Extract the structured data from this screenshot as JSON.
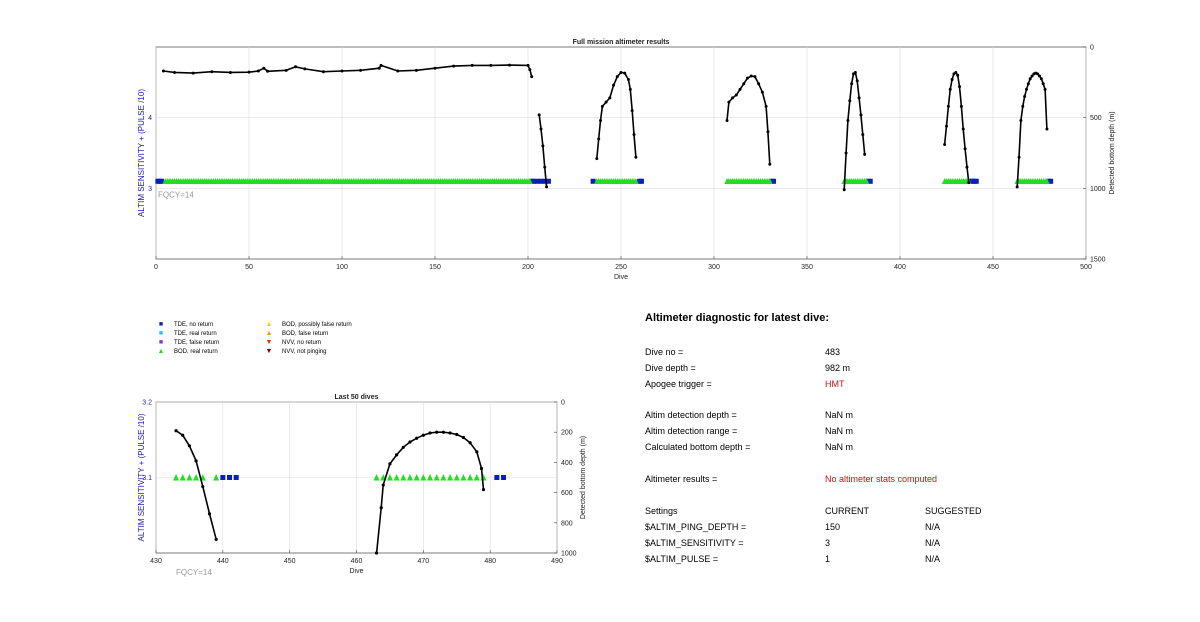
{
  "charts": [
    {
      "id": "full",
      "title": "Full mission altimeter results",
      "xlabel": "Dive",
      "ylabel_left": "ALTIM SENSITIVITY + (PULSE /10)",
      "ylabel_right": "Detected bottom depth (m)",
      "annotation": "FQCY=14",
      "xlim": [
        0,
        500
      ],
      "xticks": [
        0,
        50,
        100,
        150,
        200,
        250,
        300,
        350,
        400,
        450,
        500
      ],
      "ylim_left": [
        2,
        5
      ],
      "yticks_left": [
        3,
        4
      ],
      "ylim_right": [
        0,
        1500
      ],
      "yticks_right": [
        0,
        500,
        1000,
        1500
      ]
    },
    {
      "id": "last50",
      "title": "Last 50 dives",
      "xlabel": "Dive",
      "ylabel_left": "ALTIM SENSITIVITY + (PULSE /10)",
      "ylabel_right": "Detected bottom depth (m)",
      "annotation": "FQCY=14",
      "xlim": [
        430,
        490
      ],
      "xticks": [
        430,
        440,
        450,
        460,
        470,
        480,
        490
      ],
      "ylim_left": [
        3.0,
        3.2
      ],
      "yticks_left": [
        3.1,
        3.2
      ],
      "ylim_right": [
        0,
        1000
      ],
      "yticks_right": [
        0,
        200,
        400,
        600,
        800,
        1000
      ]
    }
  ],
  "legend": {
    "items": [
      {
        "symbol": "■",
        "color": "#0a1fbf",
        "label": "TDE, no return"
      },
      {
        "symbol": "■",
        "color": "#22c8e0",
        "label": "TDE, real return"
      },
      {
        "symbol": "■",
        "color": "#8a2be2",
        "label": "TDE, false return"
      },
      {
        "symbol": "▲",
        "color": "#22dd22",
        "label": "BOD, real return"
      },
      {
        "symbol": "▲",
        "color": "#f5d000",
        "label": "BOD, possibly false return"
      },
      {
        "symbol": "▲",
        "color": "#f59a00",
        "label": "BOD, false return"
      },
      {
        "symbol": "▼",
        "color": "#e83000",
        "label": "NVV, no return"
      },
      {
        "symbol": "▼",
        "color": "#7a0000",
        "label": "NVV, not pinging"
      }
    ]
  },
  "chart_data": [
    {
      "type": "scatter",
      "title": "Full mission altimeter results",
      "xlabel": "Dive",
      "ylabel": "ALTIM SENSITIVITY + (PULSE /10)",
      "ylabel_right": "Detected bottom depth (m)",
      "xlim": [
        0,
        500
      ],
      "ylim": [
        2,
        5
      ],
      "ylim_right": [
        0,
        1500
      ],
      "y_right_reversed": true,
      "grid": true,
      "series": [
        {
          "name": "TDE, no return",
          "marker": "square",
          "color": "#0a1fbf",
          "axis": "left",
          "x": [
            1,
            2,
            3,
            202,
            203,
            205,
            207,
            209,
            211,
            235,
            260,
            261,
            331,
            332,
            383,
            384,
            438,
            439,
            440,
            441,
            480,
            481
          ],
          "y": [
            3.1,
            3.1,
            3.1,
            3.1,
            3.1,
            3.1,
            3.1,
            3.1,
            3.1,
            3.1,
            3.1,
            3.1,
            3.1,
            3.1,
            3.1,
            3.1,
            3.1,
            3.1,
            3.1,
            3.1,
            3.1,
            3.1
          ]
        },
        {
          "name": "BOD, real return",
          "marker": "triangle",
          "color": "#22dd22",
          "axis": "left",
          "x_ranges": [
            [
              5,
              201
            ],
            [
              237,
              258
            ],
            [
              307,
              330
            ],
            [
              370,
              382
            ],
            [
              424,
              437
            ],
            [
              463,
              479
            ]
          ],
          "y": 3.1
        },
        {
          "name": "Detected bottom depth",
          "marker": "dot-line",
          "color": "#000000",
          "axis": "right",
          "x": [
            4,
            10,
            20,
            30,
            40,
            50,
            55,
            58,
            60,
            70,
            75,
            80,
            90,
            100,
            110,
            120,
            121,
            130,
            140,
            150,
            160,
            170,
            180,
            190,
            200,
            201,
            202
          ],
          "y": [
            170,
            180,
            185,
            175,
            180,
            178,
            170,
            150,
            172,
            165,
            140,
            155,
            175,
            170,
            165,
            150,
            130,
            170,
            165,
            150,
            135,
            130,
            130,
            128,
            130,
            160,
            210
          ]
        },
        {
          "name": "Detected bottom depth",
          "marker": "dot-line",
          "color": "#000000",
          "axis": "right",
          "x": [
            206,
            207,
            208,
            209,
            210
          ],
          "y": [
            480,
            580,
            700,
            850,
            990
          ]
        },
        {
          "name": "Detected bottom depth",
          "marker": "dot-line",
          "color": "#000000",
          "axis": "right",
          "x": [
            237,
            238,
            239,
            240,
            242,
            244,
            246,
            248,
            250,
            252,
            254,
            255,
            256,
            257,
            258
          ],
          "y": [
            790,
            650,
            520,
            420,
            390,
            360,
            270,
            210,
            180,
            185,
            230,
            300,
            450,
            620,
            780
          ]
        },
        {
          "name": "Detected bottom depth",
          "marker": "dot-line",
          "color": "#000000",
          "axis": "right",
          "x": [
            307,
            308,
            310,
            312,
            314,
            316,
            318,
            320,
            322,
            324,
            326,
            328,
            329,
            330
          ],
          "y": [
            520,
            390,
            360,
            340,
            300,
            260,
            220,
            205,
            210,
            260,
            320,
            420,
            600,
            830
          ]
        },
        {
          "name": "Detected bottom depth",
          "marker": "dot-line",
          "color": "#000000",
          "axis": "right",
          "x": [
            370,
            371,
            372,
            373,
            374,
            375,
            376,
            377,
            378,
            379,
            380,
            381
          ],
          "y": [
            1010,
            750,
            520,
            380,
            260,
            190,
            180,
            240,
            360,
            480,
            620,
            760
          ]
        },
        {
          "name": "Detected bottom depth",
          "marker": "dot-line",
          "color": "#000000",
          "axis": "right",
          "x": [
            424,
            425,
            426,
            427,
            428,
            429,
            430,
            431,
            432,
            433,
            434,
            435,
            436,
            437
          ],
          "y": [
            690,
            560,
            420,
            300,
            230,
            190,
            180,
            200,
            280,
            420,
            580,
            720,
            850,
            960
          ]
        },
        {
          "name": "Detected bottom depth",
          "marker": "dot-line",
          "color": "#000000",
          "axis": "right",
          "x": [
            463,
            464,
            465,
            466,
            467,
            468,
            469,
            470,
            471,
            472,
            473,
            474,
            475,
            476,
            477,
            478,
            479
          ],
          "y": [
            990,
            780,
            520,
            420,
            350,
            300,
            260,
            225,
            205,
            190,
            185,
            190,
            205,
            225,
            260,
            300,
            580
          ]
        }
      ]
    },
    {
      "type": "scatter",
      "title": "Last 50 dives",
      "xlabel": "Dive",
      "ylabel": "ALTIM SENSITIVITY + (PULSE /10)",
      "ylabel_right": "Detected bottom depth (m)",
      "xlim": [
        430,
        490
      ],
      "ylim": [
        3.0,
        3.2
      ],
      "ylim_right": [
        0,
        1000
      ],
      "y_right_reversed": true,
      "grid": true,
      "series": [
        {
          "name": "TDE, no return",
          "marker": "square",
          "color": "#0a1fbf",
          "axis": "left",
          "x": [
            440,
            441,
            442,
            481,
            482
          ],
          "y": [
            3.1,
            3.1,
            3.1,
            3.1,
            3.1
          ]
        },
        {
          "name": "BOD, real return",
          "marker": "triangle",
          "color": "#22dd22",
          "axis": "left",
          "x": [
            433,
            434,
            435,
            436,
            437,
            439,
            463,
            464,
            465,
            466,
            467,
            468,
            469,
            470,
            471,
            472,
            473,
            474,
            475,
            476,
            477,
            478,
            479
          ],
          "y": [
            3.1,
            3.1,
            3.1,
            3.1,
            3.1,
            3.1,
            3.1,
            3.1,
            3.1,
            3.1,
            3.1,
            3.1,
            3.1,
            3.1,
            3.1,
            3.1,
            3.1,
            3.1,
            3.1,
            3.1,
            3.1,
            3.1,
            3.1
          ]
        },
        {
          "name": "Detected bottom depth",
          "marker": "dot-line",
          "color": "#000000",
          "axis": "right",
          "x": [
            433,
            434,
            435,
            436,
            437,
            438,
            439
          ],
          "y": [
            190,
            220,
            290,
            390,
            560,
            740,
            910
          ]
        },
        {
          "name": "Detected bottom depth",
          "marker": "dot-line",
          "color": "#000000",
          "axis": "right",
          "x": [
            463,
            463.7,
            464,
            465,
            466,
            467,
            468,
            469,
            470,
            471,
            472,
            473,
            474,
            475,
            476,
            477,
            478,
            478.7,
            479
          ],
          "y": [
            1000,
            700,
            550,
            410,
            350,
            300,
            265,
            240,
            220,
            205,
            200,
            200,
            205,
            215,
            235,
            270,
            330,
            440,
            580
          ]
        }
      ]
    }
  ],
  "diagnostic": {
    "title": "Altimeter diagnostic for latest dive:",
    "rows": [
      {
        "label": "Dive no =",
        "value": "483",
        "red": false
      },
      {
        "label": "Dive depth =",
        "value": "982 m",
        "red": false
      },
      {
        "label": "Apogee trigger =",
        "value": "HMT",
        "red": true
      }
    ],
    "rows2": [
      {
        "label": "Altim detection depth =",
        "value": "NaN m",
        "red": false
      },
      {
        "label": "Altim detection range =",
        "value": "NaN m",
        "red": false
      },
      {
        "label": "Calculated bottom depth =",
        "value": "NaN m",
        "red": false
      }
    ],
    "results": {
      "label": "Altimeter results =",
      "value": "No altimeter stats computed"
    },
    "settings": {
      "header": [
        "Settings",
        "CURRENT",
        "SUGGESTED"
      ],
      "rows": [
        {
          "name": "$ALTIM_PING_DEPTH =",
          "current": "150",
          "suggested": "N/A"
        },
        {
          "name": "$ALTIM_SENSITIVITY =",
          "current": "3",
          "suggested": "N/A"
        },
        {
          "name": "$ALTIM_PULSE =",
          "current": "1",
          "suggested": "N/A"
        }
      ]
    }
  }
}
